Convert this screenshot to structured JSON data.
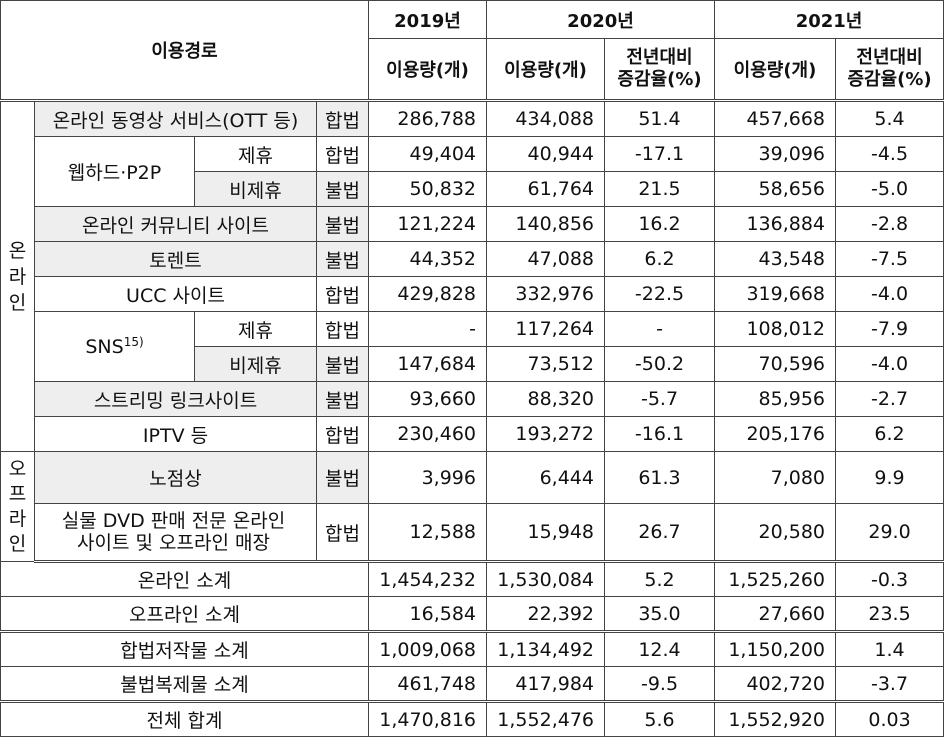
{
  "header": {
    "route": "이용경로",
    "y2019": "2019년",
    "y2020": "2020년",
    "y2021": "2021년",
    "usage": "이용량(개)",
    "change_line1": "전년대비",
    "change_line2": "증감율(%)"
  },
  "groups": {
    "online": [
      "온",
      "라",
      "인"
    ],
    "offline": [
      "오",
      "프",
      "라",
      "인"
    ],
    "webhard": "웹하드·P2P",
    "sns": "SNS",
    "sns_sup": "15)"
  },
  "rows": {
    "ott": {
      "label": "온라인 동영상 서비스(OTT 등)",
      "legal": "합법",
      "v2019": "286,788",
      "v2020": "434,088",
      "c2020": "51.4",
      "v2021": "457,668",
      "c2021": "5.4"
    },
    "wh_aff": {
      "label": "제휴",
      "legal": "합법",
      "v2019": "49,404",
      "v2020": "40,944",
      "c2020": "-17.1",
      "v2021": "39,096",
      "c2021": "-4.5"
    },
    "wh_non": {
      "label": "비제휴",
      "legal": "불법",
      "v2019": "50,832",
      "v2020": "61,764",
      "c2020": "21.5",
      "v2021": "58,656",
      "c2021": "-5.0"
    },
    "community": {
      "label": "온라인 커뮤니티 사이트",
      "legal": "불법",
      "v2019": "121,224",
      "v2020": "140,856",
      "c2020": "16.2",
      "v2021": "136,884",
      "c2021": "-2.8"
    },
    "torrent": {
      "label": "토렌트",
      "legal": "불법",
      "v2019": "44,352",
      "v2020": "47,088",
      "c2020": "6.2",
      "v2021": "43,548",
      "c2021": "-7.5"
    },
    "ucc": {
      "label": "UCC 사이트",
      "legal": "합법",
      "v2019": "429,828",
      "v2020": "332,976",
      "c2020": "-22.5",
      "v2021": "319,668",
      "c2021": "-4.0"
    },
    "sns_aff": {
      "label": "제휴",
      "legal": "합법",
      "v2019": "-",
      "v2020": "117,264",
      "c2020": "-",
      "v2021": "108,012",
      "c2021": "-7.9"
    },
    "sns_non": {
      "label": "비제휴",
      "legal": "불법",
      "v2019": "147,684",
      "v2020": "73,512",
      "c2020": "-50.2",
      "v2021": "70,596",
      "c2021": "-4.0"
    },
    "streaming": {
      "label": "스트리밍 링크사이트",
      "legal": "불법",
      "v2019": "93,660",
      "v2020": "88,320",
      "c2020": "-5.7",
      "v2021": "85,956",
      "c2021": "-2.7"
    },
    "iptv": {
      "label": "IPTV 등",
      "legal": "합법",
      "v2019": "230,460",
      "v2020": "193,272",
      "c2020": "-16.1",
      "v2021": "205,176",
      "c2021": "6.2"
    },
    "street": {
      "label": "노점상",
      "legal": "불법",
      "v2019": "3,996",
      "v2020": "6,444",
      "c2020": "61.3",
      "v2021": "7,080",
      "c2021": "9.9"
    },
    "dvd": {
      "label_line1": "실물 DVD 판매 전문 온라인",
      "label_line2": "사이트 및 오프라인 매장",
      "legal": "합법",
      "v2019": "12,588",
      "v2020": "15,948",
      "c2020": "26.7",
      "v2021": "20,580",
      "c2021": "29.0"
    }
  },
  "totals": {
    "online": {
      "label": "온라인 소계",
      "v2019": "1,454,232",
      "v2020": "1,530,084",
      "c2020": "5.2",
      "v2021": "1,525,260",
      "c2021": "-0.3"
    },
    "offline": {
      "label": "오프라인 소계",
      "v2019": "16,584",
      "v2020": "22,392",
      "c2020": "35.0",
      "v2021": "27,660",
      "c2021": "23.5"
    },
    "legal": {
      "label": "합법저작물 소계",
      "v2019": "1,009,068",
      "v2020": "1,134,492",
      "c2020": "12.4",
      "v2021": "1,150,200",
      "c2021": "1.4"
    },
    "illegal": {
      "label": "불법복제물 소계",
      "v2019": "461,748",
      "v2020": "417,984",
      "c2020": "-9.5",
      "v2021": "402,720",
      "c2021": "-3.7"
    },
    "total": {
      "label": "전체 합계",
      "v2019": "1,470,816",
      "v2020": "1,552,476",
      "c2020": "5.6",
      "v2021": "1,552,920",
      "c2021": "0.03"
    }
  }
}
